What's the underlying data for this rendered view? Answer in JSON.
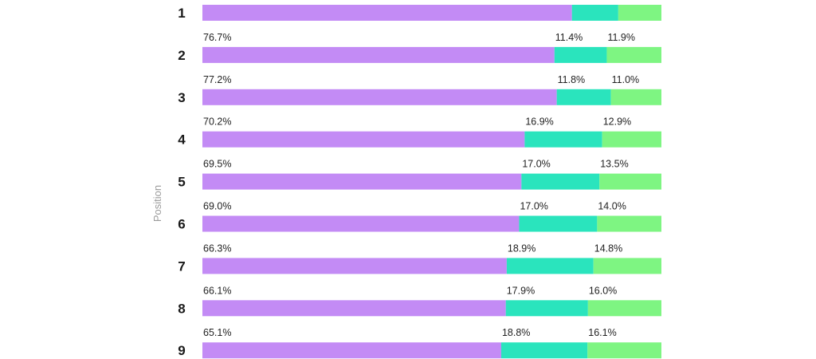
{
  "chart_data": {
    "type": "bar",
    "orientation": "horizontal",
    "stacked": true,
    "percent_stacked": true,
    "ylabel": "Position",
    "categories": [
      "1",
      "2",
      "3",
      "4",
      "5",
      "6",
      "7",
      "8",
      "9"
    ],
    "series": [
      {
        "color": "#c38bf5",
        "values": [
          80.5,
          76.7,
          77.2,
          70.2,
          69.5,
          69.0,
          66.3,
          66.1,
          65.1
        ],
        "labels": [
          "",
          "76.7%",
          "77.2%",
          "70.2%",
          "69.5%",
          "69.0%",
          "66.3%",
          "66.1%",
          "65.1%"
        ]
      },
      {
        "color": "#2ae4bd",
        "values": [
          10.1,
          11.4,
          11.8,
          16.9,
          17.0,
          17.0,
          18.9,
          17.9,
          18.8
        ],
        "labels": [
          "",
          "11.4%",
          "11.8%",
          "16.9%",
          "17.0%",
          "17.0%",
          "18.9%",
          "17.9%",
          "18.8%"
        ]
      },
      {
        "color": "#7ef582",
        "values": [
          9.4,
          11.9,
          11.0,
          12.9,
          13.5,
          14.0,
          14.8,
          16.0,
          16.1
        ],
        "labels": [
          "",
          "11.9%",
          "11.0%",
          "12.9%",
          "13.5%",
          "14.0%",
          "14.8%",
          "16.0%",
          "16.1%"
        ]
      }
    ],
    "xlim": [
      0,
      100
    ],
    "grid": false,
    "legend": "none"
  }
}
